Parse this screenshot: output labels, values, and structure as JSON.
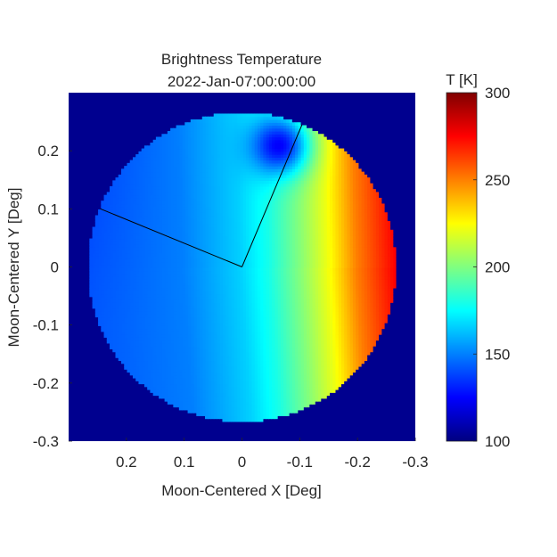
{
  "chart_data": {
    "type": "heatmap",
    "title_line1": "Brightness Temperature",
    "title_line2": "2022-Jan-07:00:00:00",
    "xlabel": "Moon-Centered X [Deg]",
    "ylabel": "Moon-Centered Y [Deg]",
    "xlim": [
      0.3,
      -0.3
    ],
    "ylim": [
      -0.3,
      0.3
    ],
    "xticks": [
      {
        "v": 0.2,
        "label": "0.2"
      },
      {
        "v": 0.1,
        "label": "0.1"
      },
      {
        "v": 0,
        "label": "0"
      },
      {
        "v": -0.1,
        "label": "-0.1"
      },
      {
        "v": -0.2,
        "label": "-0.2"
      },
      {
        "v": -0.3,
        "label": "-0.3"
      }
    ],
    "yticks": [
      {
        "v": 0.2,
        "label": "0.2"
      },
      {
        "v": 0.1,
        "label": "0.1"
      },
      {
        "v": 0,
        "label": "0"
      },
      {
        "v": -0.1,
        "label": "-0.1"
      },
      {
        "v": -0.2,
        "label": "-0.2"
      },
      {
        "v": -0.3,
        "label": "-0.3"
      }
    ],
    "disk_radius_deg": 0.266,
    "background_value_K": 100,
    "colormap": "jet",
    "colorbar": {
      "title": "T [K]",
      "range": [
        100,
        300
      ],
      "ticks": [
        {
          "v": 100,
          "label": "100"
        },
        {
          "v": 150,
          "label": "150"
        },
        {
          "v": 200,
          "label": "200"
        },
        {
          "v": 250,
          "label": "250"
        },
        {
          "v": 300,
          "label": "300"
        }
      ]
    },
    "lines": [
      {
        "name": "ray-to-subsolar-point",
        "x": [
          0,
          -0.104
        ],
        "y": [
          0,
          0.245
        ]
      },
      {
        "name": "ray-to-limb",
        "x": [
          0,
          0.245
        ],
        "y": [
          0,
          0.1
        ]
      }
    ],
    "temperature_profile": [
      {
        "x": 0.266,
        "T": 142
      },
      {
        "x": 0.2,
        "T": 145
      },
      {
        "x": 0.1,
        "T": 150
      },
      {
        "x": 0.0,
        "T": 166
      },
      {
        "x": -0.05,
        "T": 180
      },
      {
        "x": -0.1,
        "T": 200
      },
      {
        "x": -0.15,
        "T": 222
      },
      {
        "x": -0.2,
        "T": 250
      },
      {
        "x": -0.266,
        "T": 275
      }
    ],
    "cold_spot": {
      "x": -0.07,
      "y": 0.21,
      "T": 122
    }
  },
  "colors": {
    "axis": "#262626",
    "background_field": "#00008F",
    "ray": "#000000"
  }
}
